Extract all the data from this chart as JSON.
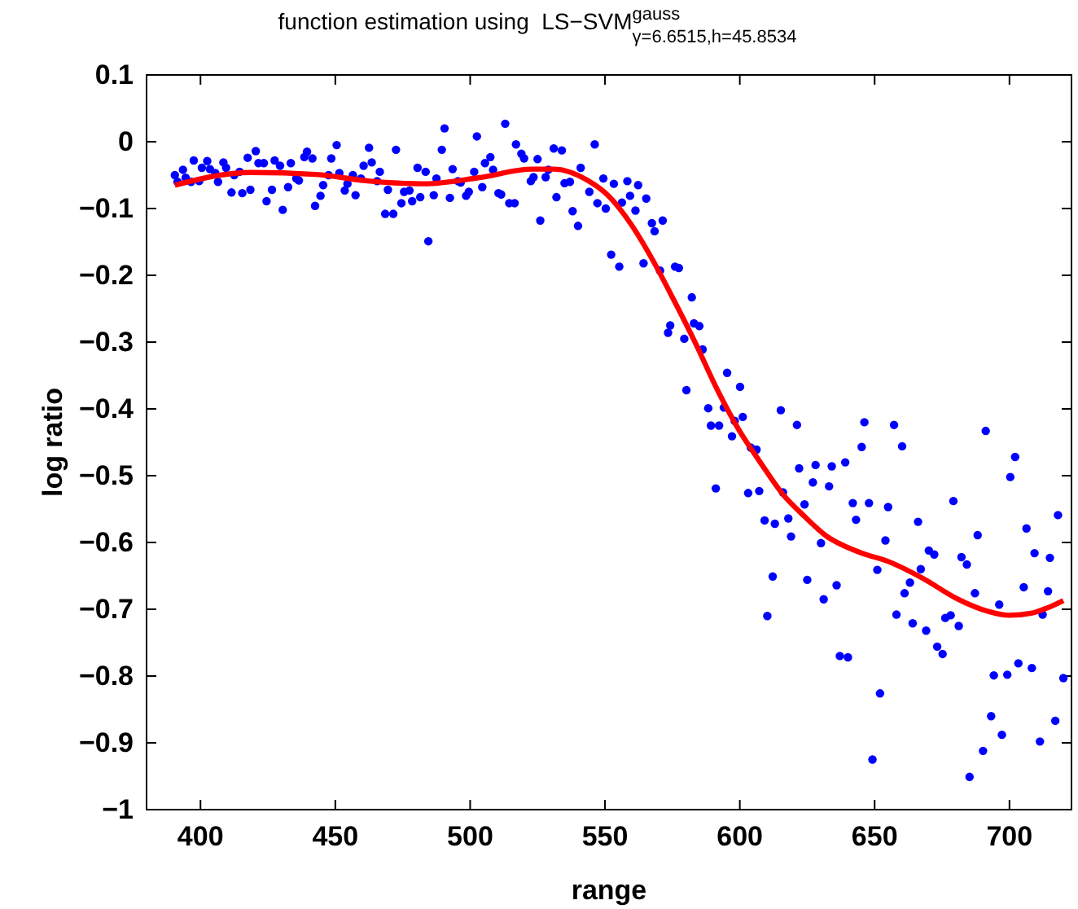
{
  "chart_data": {
    "type": "scatter",
    "title": "function estimation using  LS−SVM$^{gauss}$$_{γ=6.6515,h=45.8534}$",
    "xlabel": "range",
    "ylabel": "log ratio",
    "xlim": [
      380,
      723
    ],
    "xticks": [
      400,
      450,
      500,
      550,
      600,
      650,
      700
    ],
    "ylim": [
      -1,
      0.1
    ],
    "yticks": [
      -1,
      -0.9,
      -0.8,
      -0.7,
      -0.6,
      -0.5,
      -0.4,
      -0.3,
      -0.2,
      -0.1,
      0,
      0.1
    ],
    "grid": false,
    "series": [
      {
        "color": "#0000ff",
        "marker": "circle",
        "x": [
          390.5,
          391.5,
          393.5,
          394.5,
          396.5,
          397.5,
          399.5,
          400.5,
          402.5,
          403.5,
          405.5,
          406.5,
          408.5,
          409.5,
          411.5,
          412.5,
          414.5,
          415.5,
          417.5,
          418.5,
          420.5,
          421.5,
          423.5,
          424.5,
          426.5,
          427.5,
          429.5,
          430.5,
          432.5,
          433.5,
          435.5,
          436.5,
          438.5,
          439.5,
          441.5,
          442.5,
          444.5,
          445.5,
          447.5,
          448.5,
          450.5,
          451.5,
          453.5,
          454.5,
          456.5,
          457.5,
          459.5,
          460.5,
          462.5,
          463.5,
          465.5,
          466.5,
          468.5,
          469.5,
          471.5,
          472.5,
          474.5,
          475.5,
          477.5,
          478.5,
          480.5,
          481.5,
          483.5,
          484.5,
          486.5,
          487.5,
          489.5,
          490.5,
          492.5,
          493.5,
          495.5,
          496.5,
          498.5,
          499.5,
          501.5,
          502.5,
          504.5,
          505.5,
          507.5,
          508.5,
          510.5,
          511.5,
          513,
          514.5,
          516.5,
          517,
          519,
          520,
          522.5,
          523.5,
          525,
          526,
          528,
          529,
          531,
          532,
          534,
          535,
          537,
          538,
          540,
          541,
          544.2,
          546.2,
          547.2,
          549.4,
          550.3,
          552.3,
          553.3,
          555.3,
          556.3,
          558.3,
          559.3,
          561.3,
          562.3,
          564.3,
          565.3,
          567.4,
          568.4,
          570.4,
          571.4,
          573.4,
          574.2,
          576,
          577.4,
          579.4,
          580.2,
          582.2,
          583,
          585,
          586.2,
          588.3,
          589.3,
          591.1,
          592.3,
          594.1,
          595.3,
          597.1,
          598.1,
          600.1,
          601.1,
          603.1,
          604.1,
          606.2,
          607.2,
          609.2,
          610.2,
          612.2,
          613,
          615.2,
          616,
          618,
          619,
          621.2,
          622,
          624,
          625,
          627.1,
          628.1,
          630.1,
          631.1,
          633.1,
          634.1,
          635.9,
          637.1,
          639.1,
          640.1,
          641.9,
          643.1,
          645.2,
          646.2,
          647.9,
          649.2,
          651,
          652,
          654,
          655,
          657.2,
          658.1,
          660.2,
          661.1,
          663.1,
          664.1,
          666.1,
          667.1,
          669.1,
          670.1,
          672.1,
          673.2,
          675.2,
          676.2,
          678.2,
          679.2,
          681.2,
          682.2,
          684.2,
          685.2,
          687.2,
          688.2,
          690.2,
          691.2,
          693.2,
          694.2,
          696.2,
          697.2,
          699.2,
          700.3,
          702.1,
          703.3,
          705.3,
          706.3,
          708.3,
          709.3,
          711.3,
          712.3,
          714.3,
          715,
          717,
          718,
          720
        ],
        "values": [
          -0.05,
          -0.06,
          -0.042,
          -0.054,
          -0.06,
          -0.028,
          -0.059,
          -0.039,
          -0.029,
          -0.041,
          -0.047,
          -0.06,
          -0.031,
          -0.039,
          -0.076,
          -0.05,
          -0.045,
          -0.077,
          -0.024,
          -0.072,
          -0.014,
          -0.032,
          -0.032,
          -0.089,
          -0.072,
          -0.028,
          -0.036,
          -0.102,
          -0.068,
          -0.032,
          -0.055,
          -0.058,
          -0.023,
          -0.015,
          -0.025,
          -0.096,
          -0.081,
          -0.065,
          -0.05,
          -0.025,
          -0.005,
          -0.047,
          -0.073,
          -0.063,
          -0.05,
          -0.08,
          -0.055,
          -0.036,
          -0.009,
          -0.031,
          -0.059,
          -0.045,
          -0.108,
          -0.072,
          -0.108,
          -0.012,
          -0.092,
          -0.075,
          -0.073,
          -0.089,
          -0.039,
          -0.083,
          -0.045,
          -0.149,
          -0.08,
          -0.055,
          -0.012,
          0.02,
          -0.084,
          -0.041,
          -0.059,
          -0.061,
          -0.081,
          -0.075,
          -0.045,
          0.008,
          -0.068,
          -0.032,
          -0.023,
          -0.042,
          -0.077,
          -0.079,
          0.027,
          -0.092,
          -0.092,
          -0.004,
          -0.018,
          -0.025,
          -0.059,
          -0.053,
          -0.026,
          -0.118,
          -0.053,
          -0.042,
          -0.01,
          -0.083,
          -0.013,
          -0.062,
          -0.06,
          -0.104,
          -0.126,
          -0.039,
          -0.075,
          -0.004,
          -0.092,
          -0.055,
          -0.1,
          -0.169,
          -0.063,
          -0.187,
          -0.091,
          -0.059,
          -0.081,
          -0.103,
          -0.065,
          -0.182,
          -0.085,
          -0.122,
          -0.134,
          -0.193,
          -0.118,
          -0.286,
          -0.275,
          -0.187,
          -0.189,
          -0.295,
          -0.372,
          -0.233,
          -0.272,
          -0.276,
          -0.311,
          -0.399,
          -0.425,
          -0.519,
          -0.425,
          -0.398,
          -0.346,
          -0.441,
          -0.418,
          -0.367,
          -0.412,
          -0.526,
          -0.458,
          -0.461,
          -0.523,
          -0.567,
          -0.71,
          -0.651,
          -0.572,
          -0.402,
          -0.525,
          -0.564,
          -0.591,
          -0.424,
          -0.489,
          -0.543,
          -0.656,
          -0.51,
          -0.484,
          -0.601,
          -0.685,
          -0.516,
          -0.486,
          -0.664,
          -0.77,
          -0.48,
          -0.772,
          -0.541,
          -0.566,
          -0.457,
          -0.42,
          -0.541,
          -0.925,
          -0.641,
          -0.826,
          -0.597,
          -0.547,
          -0.424,
          -0.708,
          -0.456,
          -0.676,
          -0.66,
          -0.721,
          -0.569,
          -0.64,
          -0.732,
          -0.612,
          -0.618,
          -0.756,
          -0.767,
          -0.713,
          -0.709,
          -0.538,
          -0.725,
          -0.622,
          -0.633,
          -0.951,
          -0.676,
          -0.589,
          -0.912,
          -0.433,
          -0.86,
          -0.799,
          -0.693,
          -0.888,
          -0.798,
          -0.502,
          -0.472,
          -0.781,
          -0.667,
          -0.579,
          -0.788,
          -0.616,
          -0.898,
          -0.708,
          -0.673,
          -0.623,
          -0.867,
          -0.559,
          -0.803
        ]
      },
      {
        "type": "line",
        "color": "#ff0000",
        "line_style": "solid",
        "x": [
          390.5,
          418.6,
          442.7,
          462.8,
          482.9,
          503,
          523.1,
          531.1,
          543.2,
          551.3,
          559.4,
          567.4,
          575.4,
          583.5,
          591.5,
          599.6,
          607.6,
          616,
          624,
          632,
          644,
          656,
          668,
          680,
          692,
          700,
          708,
          714,
          720
        ],
        "values": [
          -0.065,
          -0.046,
          -0.049,
          -0.059,
          -0.063,
          -0.054,
          -0.041,
          -0.041,
          -0.057,
          -0.081,
          -0.122,
          -0.175,
          -0.236,
          -0.301,
          -0.37,
          -0.431,
          -0.48,
          -0.528,
          -0.561,
          -0.59,
          -0.614,
          -0.63,
          -0.654,
          -0.683,
          -0.703,
          -0.709,
          -0.706,
          -0.698,
          -0.687
        ]
      }
    ]
  }
}
